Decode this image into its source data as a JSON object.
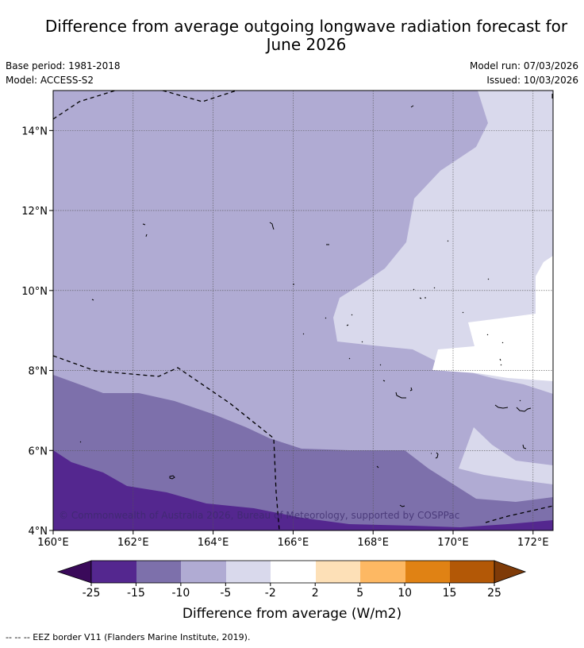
{
  "title_line1": "Difference from average outgoing longwave radiation forecast for",
  "title_line2": "June 2026",
  "base_period": "Base period: 1981-2018",
  "model": "Model: ACCESS-S2",
  "model_run": "Model run: 07/03/2026",
  "issued": "Issued: 10/03/2026",
  "copyright": "© Commonwealth of Australia 2026, Bureau of Meteorology, supported by COSPPac",
  "footer": "--  --  -- EEZ border V11 (Flanders Marine Institute, 2019).",
  "map": {
    "lon_range": [
      160,
      172.5
    ],
    "lat_range": [
      4,
      15
    ],
    "lat_ticks": [
      "4°N",
      "6°N",
      "8°N",
      "10°N",
      "12°N",
      "14°N"
    ],
    "lon_ticks": [
      "160°E",
      "162°E",
      "164°E",
      "166°E",
      "168°E",
      "170°E",
      "172°E"
    ],
    "grid": true
  },
  "colorbar": {
    "label": "Difference from average (W/m2)",
    "tick_labels": [
      "-25",
      "-15",
      "-10",
      "-5",
      "-2",
      "2",
      "5",
      "10",
      "15",
      "25"
    ],
    "colors": {
      "below_-25": "#3a0a5a",
      "-25_-15": "#54278f",
      "-15_-10": "#7d70ab",
      "-10_-5": "#b0abd3",
      "-5_-2": "#d9d9ec",
      "-2_2": "#ffffff",
      "2_5": "#fde0b7",
      "5_10": "#fdb863",
      "10_15": "#e08214",
      "15_25": "#b35806",
      "above_25": "#7f3b08"
    }
  }
}
